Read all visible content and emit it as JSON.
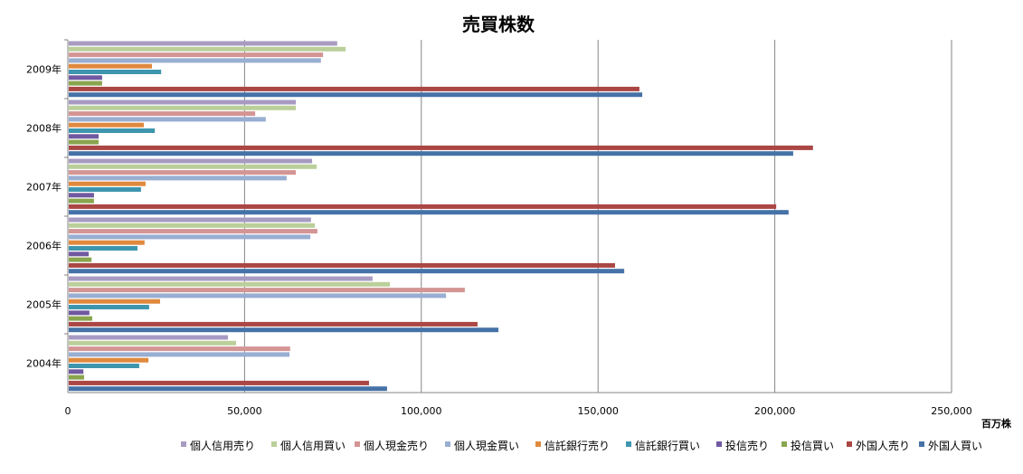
{
  "chart_data": {
    "type": "bar",
    "orientation": "horizontal",
    "title": "売買株数",
    "xlabel": "百万株",
    "ylabel": "",
    "xlim": [
      0,
      250000
    ],
    "xticks": [
      0,
      50000,
      100000,
      150000,
      200000,
      250000
    ],
    "xtick_labels": [
      "0",
      "50,000",
      "100,000",
      "150,000",
      "200,000",
      "250,000"
    ],
    "grid": true,
    "legend_position": "bottom-right",
    "categories": [
      "2009年",
      "2008年",
      "2007年",
      "2006年",
      "2005年",
      "2004年"
    ],
    "series": [
      {
        "name": "個人信用売り",
        "color": "#A79BC2",
        "values": [
          76200,
          64500,
          69100,
          68800,
          86200,
          45300
        ]
      },
      {
        "name": "個人信用買い",
        "color": "#BBCF9A",
        "values": [
          78600,
          64500,
          70400,
          69900,
          91100,
          47600
        ]
      },
      {
        "name": "個人現金売り",
        "color": "#D49595",
        "values": [
          72200,
          53000,
          64500,
          70600,
          112300,
          62900
        ]
      },
      {
        "name": "個人現金買い",
        "color": "#98AED2",
        "values": [
          71600,
          56000,
          61900,
          68600,
          107000,
          62700
        ]
      },
      {
        "name": "信託銀行売り",
        "color": "#E0893E",
        "values": [
          23800,
          21500,
          22000,
          21700,
          26100,
          22800
        ]
      },
      {
        "name": "信託銀行買い",
        "color": "#3E96AE",
        "values": [
          26400,
          24600,
          20700,
          19700,
          23000,
          20200
        ]
      },
      {
        "name": "投信売り",
        "color": "#7059A0",
        "values": [
          9700,
          8700,
          7400,
          5900,
          6100,
          4400
        ]
      },
      {
        "name": "投信買い",
        "color": "#89A54E",
        "values": [
          9700,
          8700,
          7400,
          6700,
          6900,
          4600
        ]
      },
      {
        "name": "外国人売り",
        "color": "#AA4644",
        "values": [
          161700,
          210800,
          200400,
          154800,
          115900,
          85200
        ]
      },
      {
        "name": "外国人買い",
        "color": "#4572A7",
        "values": [
          162500,
          205200,
          203900,
          157400,
          121800,
          90300
        ]
      }
    ]
  }
}
